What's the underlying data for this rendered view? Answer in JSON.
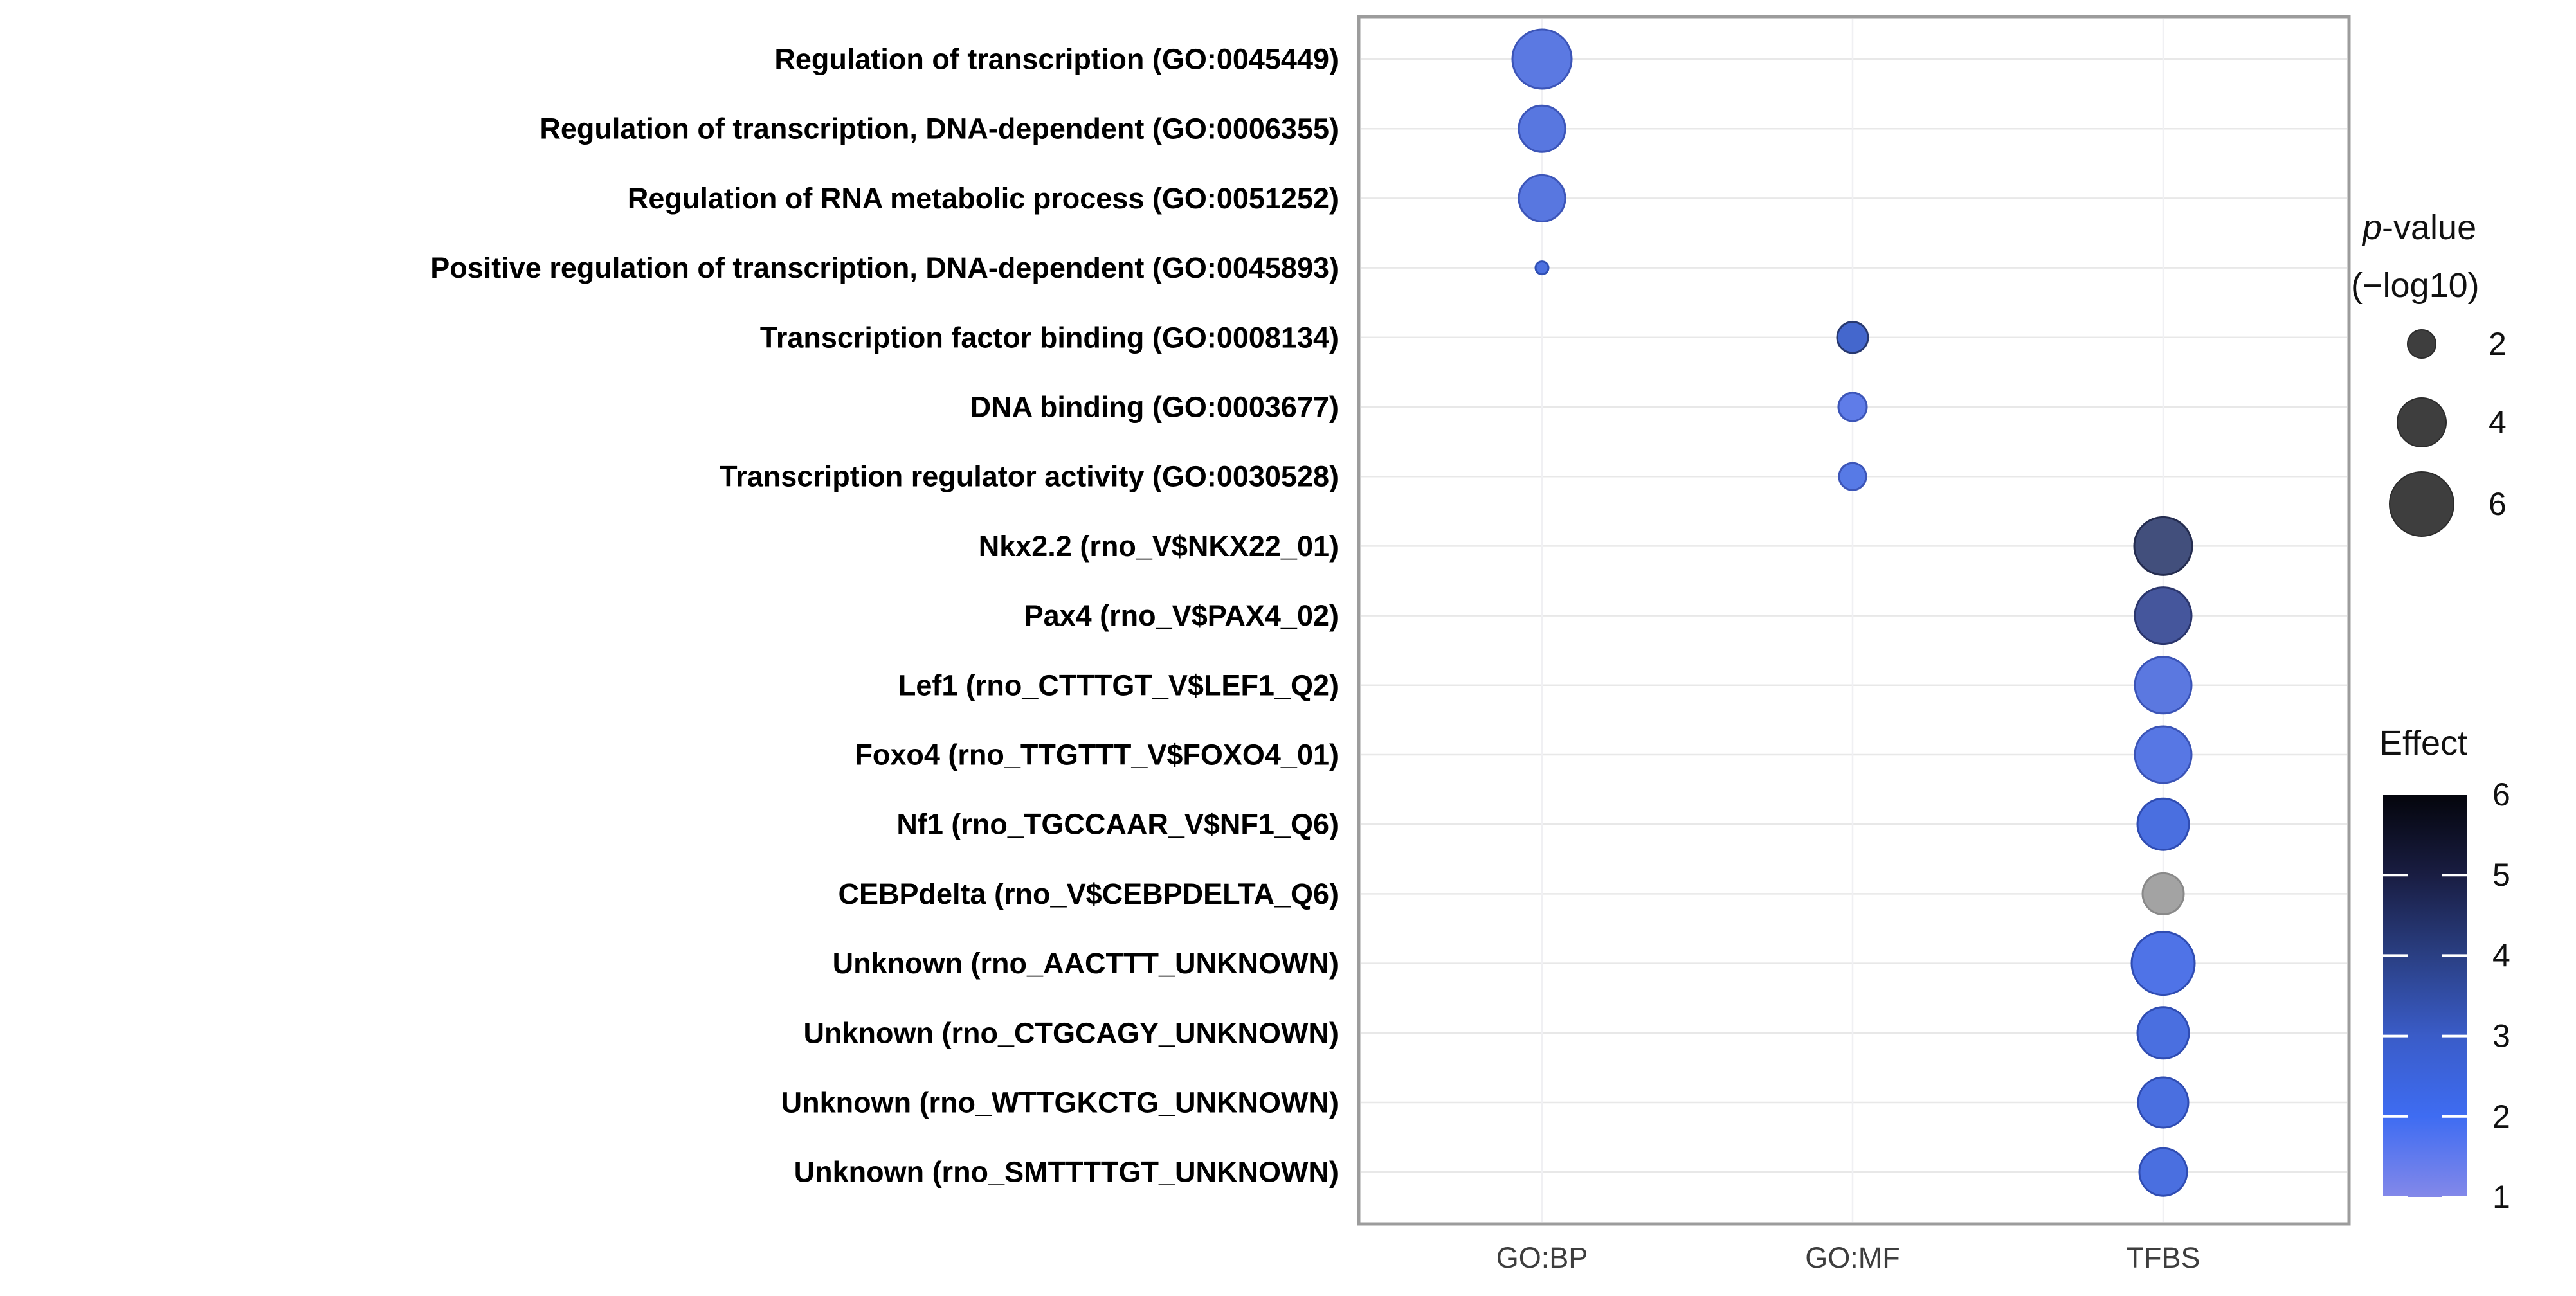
{
  "figure": {
    "description_label": "Enrichment bubble plot of transcription-related GO terms and transcription factor binding site motifs"
  },
  "chart_data": {
    "type": "scatter",
    "title": "",
    "xlabel": "",
    "ylabel": "",
    "grid": true,
    "x_categories": [
      "GO:BP",
      "GO:MF",
      "TFBS"
    ],
    "y_categories": [
      "Regulation of transcription (GO:0045449)",
      "Regulation of transcription, DNA-dependent (GO:0006355)",
      "Regulation of RNA metabolic process (GO:0051252)",
      "Positive regulation of transcription, DNA-dependent (GO:0045893)",
      "Transcription factor binding (GO:0008134)",
      "DNA binding (GO:0003677)",
      "Transcription regulator activity (GO:0030528)",
      "Nkx2.2 (rno_V$NKX22_01)",
      "Pax4 (rno_V$PAX4_02)",
      "Lef1 (rno_CTTTGT_V$LEF1_Q2)",
      "Foxo4 (rno_TTGTTT_V$FOXO4_01)",
      "Nf1 (rno_TGCCAAR_V$NF1_Q6)",
      "CEBPdelta (rno_V$CEBPDELTA_Q6)",
      "Unknown (rno_AACTTT_UNKNOWN)",
      "Unknown (rno_CTGCAGY_UNKNOWN)",
      "Unknown (rno_WTTGKCTG_UNKNOWN)",
      "Unknown (rno_SMTTTTGT_UNKNOWN)"
    ],
    "points": [
      {
        "label": "Regulation of transcription (GO:0045449)",
        "category": "GO:BP",
        "p_log10": 5.4,
        "effect": 2.0,
        "r": 46,
        "fill": "#5b79e2",
        "stroke": "#3c55b8"
      },
      {
        "label": "Regulation of transcription, DNA-dependent (GO:0006355)",
        "category": "GO:BP",
        "p_log10": 3.8,
        "effect": 2.0,
        "r": 36,
        "fill": "#5877e0",
        "stroke": "#3c55b8"
      },
      {
        "label": "Regulation of RNA metabolic process (GO:0051252)",
        "category": "GO:BP",
        "p_log10": 3.8,
        "effect": 2.0,
        "r": 36,
        "fill": "#5877e0",
        "stroke": "#3c55b8"
      },
      {
        "label": "Positive regulation of transcription, DNA-dependent (GO:0045893)",
        "category": "GO:BP",
        "p_log10": 1.3,
        "effect": 2.5,
        "r": 10,
        "fill": "#4c70e0",
        "stroke": "#3050b5"
      },
      {
        "label": "Transcription factor binding (GO:0008134)",
        "category": "GO:MF",
        "p_log10": 2.3,
        "effect": 3.0,
        "r": 24,
        "fill": "#4467cd",
        "stroke": "#27386f"
      },
      {
        "label": "DNA binding (GO:0003677)",
        "category": "GO:MF",
        "p_log10": 2.1,
        "effect": 1.7,
        "r": 22,
        "fill": "#5f7ce8",
        "stroke": "#3c55b8"
      },
      {
        "label": "Transcription regulator activity (GO:0030528)",
        "category": "GO:MF",
        "p_log10": 2.0,
        "effect": 2.0,
        "r": 21,
        "fill": "#577ae6",
        "stroke": "#3c55b8"
      },
      {
        "label": "Nkx2.2 (rno_V$NKX22_01)",
        "category": "TFBS",
        "p_log10": 5.2,
        "effect": 4.6,
        "r": 45,
        "fill": "#424f7c",
        "stroke": "#242c4f"
      },
      {
        "label": "Pax4 (rno_V$PAX4_02)",
        "category": "TFBS",
        "p_log10": 5.1,
        "effect": 4.0,
        "r": 44,
        "fill": "#45569c",
        "stroke": "#2a356c"
      },
      {
        "label": "Lef1 (rno_CTTTGT_V$LEF1_Q2)",
        "category": "TFBS",
        "p_log10": 5.1,
        "effect": 2.0,
        "r": 44,
        "fill": "#5b78e0",
        "stroke": "#3a53b6"
      },
      {
        "label": "Foxo4 (rno_TTGTTT_V$FOXO4_01)",
        "category": "TFBS",
        "p_log10": 5.1,
        "effect": 2.1,
        "r": 44,
        "fill": "#5777e4",
        "stroke": "#3a53b6"
      },
      {
        "label": "Nf1 (rno_TGCCAAR_V$NF1_Q6)",
        "category": "TFBS",
        "p_log10": 4.4,
        "effect": 2.7,
        "r": 40,
        "fill": "#4a6fe0",
        "stroke": "#2f4cb2"
      },
      {
        "label": "CEBPdelta (rno_V$CEBPDELTA_Q6)",
        "category": "TFBS",
        "p_log10": 3.2,
        "effect": null,
        "r": 32,
        "fill": "#a3a3a3",
        "stroke": "#898989"
      },
      {
        "label": "Unknown (rno_AACTTT_UNKNOWN)",
        "category": "TFBS",
        "p_log10": 5.8,
        "effect": 2.3,
        "r": 49,
        "fill": "#4f73e7",
        "stroke": "#2f4cb2"
      },
      {
        "label": "Unknown (rno_CTGCAGY_UNKNOWN)",
        "category": "TFBS",
        "p_log10": 4.4,
        "effect": 2.7,
        "r": 40,
        "fill": "#4a6fe0",
        "stroke": "#2f4cb2"
      },
      {
        "label": "Unknown (rno_WTTGKCTG_UNKNOWN)",
        "category": "TFBS",
        "p_log10": 4.3,
        "effect": 2.7,
        "r": 39,
        "fill": "#4a6fe0",
        "stroke": "#2f4cb2"
      },
      {
        "label": "Unknown (rno_SMTTTTGT_UNKNOWN)",
        "category": "TFBS",
        "p_log10": 4.0,
        "effect": 2.7,
        "r": 37,
        "fill": "#4a6fe0",
        "stroke": "#2f4cb2"
      }
    ],
    "size_legend": {
      "title_italic": "p",
      "title_rest": "-value",
      "title_line2": "(−log10)",
      "values": [
        2,
        4,
        6
      ],
      "radii": [
        22,
        38,
        50
      ],
      "dot_fill": "#3e3e3e",
      "dot_stroke": "#2b2b2b"
    },
    "color_legend": {
      "title": "Effect",
      "min": 1,
      "max": 6,
      "ticks": [
        6,
        5,
        4,
        3,
        2,
        1
      ],
      "gradient_top_to_bottom": [
        "#04050c",
        "#191d42",
        "#2a3f83",
        "#3a5cc8",
        "#3e6cf2",
        "#8388e9"
      ]
    },
    "styles": {
      "background": "#ffffff",
      "panel_border": "#9c9c9c",
      "grid_horizontal": "#e8e8e8",
      "grid_vertical": "#f0f0f3",
      "y_label_color": "#000000",
      "x_label_color": "#3d3d3d",
      "legend_text_color": "#111111"
    }
  }
}
